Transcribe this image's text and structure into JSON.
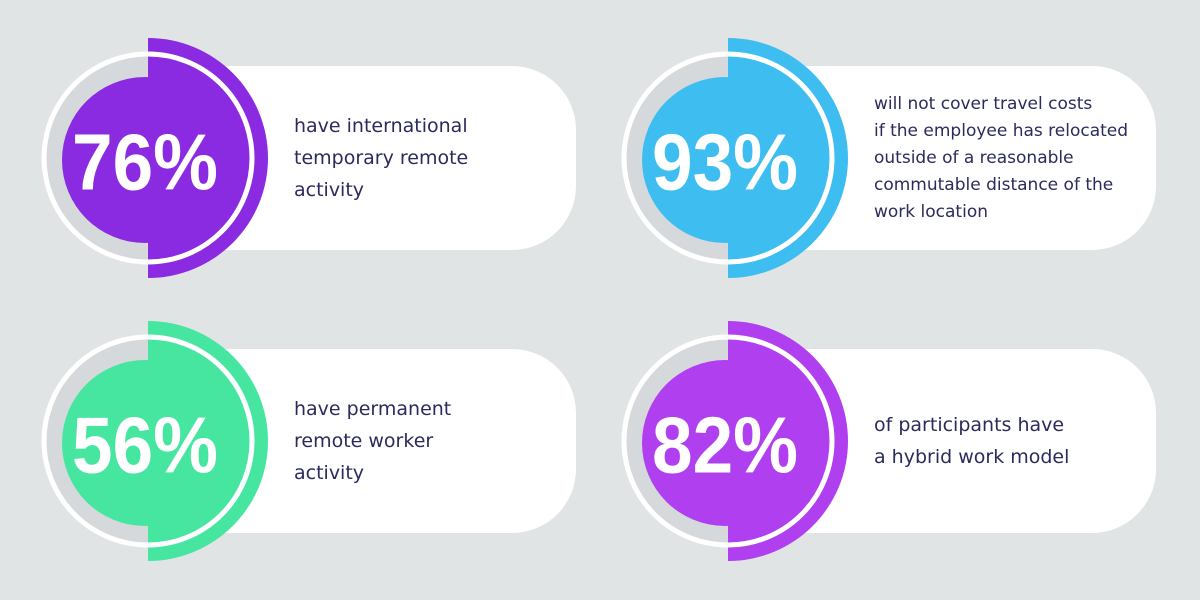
{
  "stats": [
    {
      "value": "76%",
      "color": "#8a2be2",
      "description": [
        "have international",
        "temporary remote",
        "activity"
      ]
    },
    {
      "value": "93%",
      "color": "#3ebdf0",
      "description": [
        "will not cover travel costs",
        "if the employee has relocated",
        "outside of a reasonable",
        "commutable distance of the",
        "work location"
      ]
    },
    {
      "value": "56%",
      "color": "#46e6a0",
      "description": [
        "have permanent",
        "remote worker",
        "activity"
      ]
    },
    {
      "value": "82%",
      "color": "#b03ff0",
      "description": [
        "of participants have",
        "a hybrid work model"
      ]
    }
  ]
}
